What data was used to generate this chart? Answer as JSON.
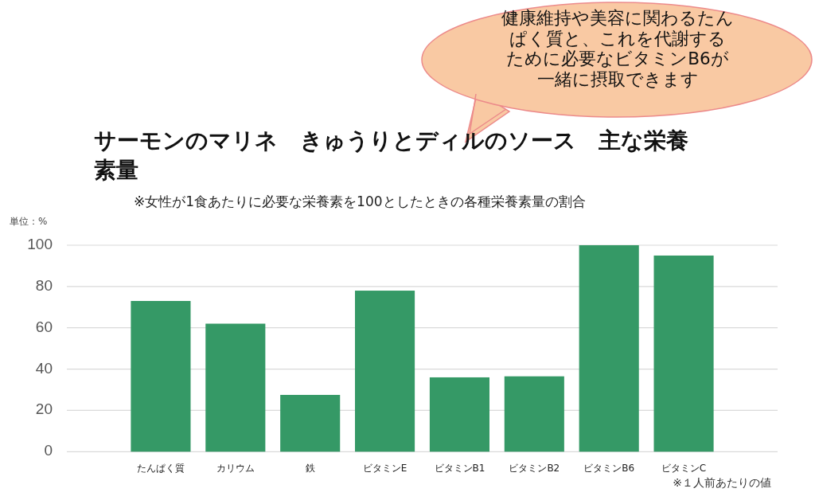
{
  "chart_data": {
    "type": "bar",
    "title": "サーモンのマリネ　きゅうりとディルのソース　主な栄養素量",
    "subtitle": "※女性が1食あたりに必要な栄養素を100としたときの各種栄養素量の割合",
    "ylabel": "単位：%",
    "categories": [
      "たんぱく質",
      "カリウム",
      "鉄",
      "ビタミンE",
      "ビタミンB1",
      "ビタミンB2",
      "ビタミンB6",
      "ビタミンC"
    ],
    "values": [
      73,
      62,
      27.5,
      78,
      36,
      36.5,
      100,
      95
    ],
    "color": "#359966",
    "ylim": [
      0,
      100
    ],
    "yticks": [
      0,
      20,
      40,
      60,
      80,
      100
    ],
    "grid": "y",
    "annotations": [
      "健康維持や美容に関わるたんぱく質と、これを代謝するために必要なビタミンB6が一緒に摂取できます",
      "※１人前あたりの値"
    ]
  }
}
